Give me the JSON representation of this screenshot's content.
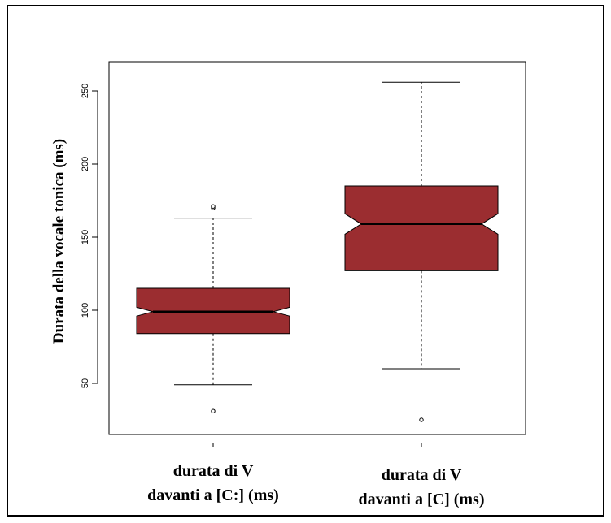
{
  "chart_data": {
    "type": "boxplot",
    "title": "",
    "ylabel": "Durata della vocale tonica (ms)",
    "xlabel": "",
    "ylim": [
      15,
      270
    ],
    "yticks": [
      50,
      100,
      150,
      200,
      250
    ],
    "notched": true,
    "box_color": "#9b2d30",
    "series": [
      {
        "category_lines": [
          "durata di V",
          "davanti a [C:] (ms)"
        ],
        "whisker_low": 49,
        "q1": 84,
        "notch_low": 96,
        "median": 99,
        "notch_high": 102,
        "q3": 115,
        "whisker_high": 163,
        "outliers": [
          31,
          170,
          171
        ]
      },
      {
        "category_lines": [
          "durata di V",
          "davanti a [C] (ms)"
        ],
        "whisker_low": 60,
        "q1": 127,
        "notch_low": 152,
        "median": 159,
        "notch_high": 166,
        "q3": 185,
        "whisker_high": 256,
        "outliers": [
          25
        ]
      }
    ]
  }
}
